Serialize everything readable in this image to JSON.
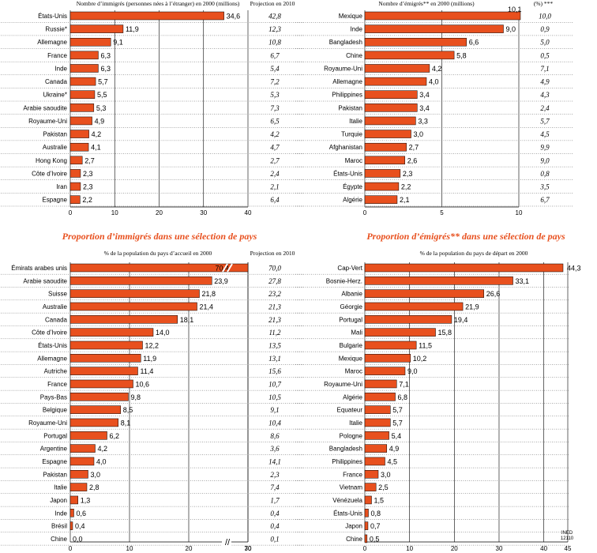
{
  "colors": {
    "bar": "#e8501e",
    "title": "#e8501e",
    "grid": "#000000",
    "dots": "#555555"
  },
  "panel_titles": {
    "top_left": "",
    "top_right": "",
    "bottom_left": "Proportion d’immigrés dans une sélection de pays",
    "bottom_right": "Proportion d’émigrés** dans une sélection de pays"
  },
  "column_headers": {
    "top_left": "Nombre d’immigrés (personnes nées à l’étranger) en 2000 (millions)",
    "top_left_proj": "Projection en 2010",
    "top_right": "Nombre d’émigrés** en 2000 (millions)",
    "top_right_proj": "(%) ***",
    "bottom_left": "% de la population du pays d’accueil en 2000",
    "bottom_left_proj": "Projection en 2010",
    "bottom_right": "% de la population du pays de départ en 2000"
  },
  "source_mark": "INED 12110",
  "axis_break_mark": "//",
  "chart_data": [
    {
      "id": "immigres_nombre",
      "type": "bar",
      "orientation": "horizontal",
      "categories": [
        "États-Unis",
        "Russie*",
        "Allemagne",
        "France",
        "Inde",
        "Canada",
        "Ukraine*",
        "Arabie saoudite",
        "Royaume-Uni",
        "Pakistan",
        "Australie",
        "Hong Kong",
        "Côte d’Ivoire",
        "Iran",
        "Espagne"
      ],
      "values": [
        34.6,
        11.9,
        9.1,
        6.3,
        6.3,
        5.7,
        5.5,
        5.3,
        4.9,
        4.2,
        4.1,
        2.7,
        2.3,
        2.3,
        2.2
      ],
      "value_labels": [
        "34,6",
        "11,9",
        "9,1",
        "6,3",
        "6,3",
        "5,7",
        "5,5",
        "5,3",
        "4,9",
        "4,2",
        "4,1",
        "2,7",
        "2,3",
        "2,3",
        "2,2"
      ],
      "projection_labels": [
        "42,8",
        "12,3",
        "10,8",
        "6,7",
        "5,4",
        "7,2",
        "5,3",
        "7,3",
        "6,5",
        "4,2",
        "4,7",
        "2,7",
        "2,4",
        "2,1",
        "6,4"
      ],
      "xlim": [
        0,
        40
      ],
      "xticks": [
        "0",
        "10",
        "20",
        "30",
        "40"
      ],
      "grid": true
    },
    {
      "id": "emigres_nombre",
      "type": "bar",
      "orientation": "horizontal",
      "categories": [
        "Mexique",
        "Inde",
        "Bangladesh",
        "Chine",
        "Royaume-Uni",
        "Allemagne",
        "Philippines",
        "Pakistan",
        "Italie",
        "Turquie",
        "Afghanistan",
        "Maroc",
        "États-Unis",
        "Égypte",
        "Algérie"
      ],
      "values": [
        10.1,
        9.0,
        6.6,
        5.8,
        4.2,
        4.0,
        3.4,
        3.4,
        3.3,
        3.0,
        2.7,
        2.6,
        2.3,
        2.2,
        2.1
      ],
      "value_labels": [
        "10,1",
        "9,0",
        "6,6",
        "5,8",
        "4,2",
        "4,0",
        "3,4",
        "3,4",
        "3,3",
        "3,0",
        "2,7",
        "2,6",
        "2,3",
        "2,2",
        "2,1"
      ],
      "projection_labels": [
        "10,0",
        "0,9",
        "5,0",
        "0,5",
        "7,1",
        "4,9",
        "4,3",
        "2,4",
        "5,7",
        "4,5",
        "9,9",
        "9,0",
        "0,8",
        "3,5",
        "6,7"
      ],
      "xlim": [
        0,
        10
      ],
      "xticks": [
        "0",
        "5",
        "10"
      ],
      "grid": true
    },
    {
      "id": "immigres_proportion",
      "type": "bar",
      "orientation": "horizontal",
      "title": "Proportion d’immigrés dans une sélection de pays",
      "categories": [
        "Émirats arabes unis",
        "Arabie saoudite",
        "Suisse",
        "Australie",
        "Canada",
        "Côte d’Ivoire",
        "États-Unis",
        "Allemagne",
        "Autriche",
        "France",
        "Pays-Bas",
        "Belgique",
        "Royaume-Uni",
        "Portugal",
        "Argentine",
        "Espagne",
        "Pakistan",
        "Italie",
        "Japon",
        "Inde",
        "Brésil",
        "Chine"
      ],
      "values": [
        70.4,
        23.9,
        21.8,
        21.4,
        18.1,
        14.0,
        12.2,
        11.9,
        11.4,
        10.6,
        9.8,
        8.5,
        8.1,
        6.2,
        4.2,
        4.0,
        3.0,
        2.8,
        1.3,
        0.6,
        0.4,
        0.0
      ],
      "value_labels": [
        "70,4",
        "23,9",
        "21,8",
        "21,4",
        "18,1",
        "14,0",
        "12,2",
        "11,9",
        "11,4",
        "10,6",
        "9,8",
        "8,5",
        "8,1",
        "6,2",
        "4,2",
        "4,0",
        "3,0",
        "2,8",
        "1,3",
        "0,6",
        "0,4",
        "0,0"
      ],
      "projection_labels": [
        "70,0",
        "27,8",
        "23,2",
        "21,3",
        "21,3",
        "11,2",
        "13,5",
        "13,1",
        "15,6",
        "10,7",
        "10,5",
        "9,1",
        "10,4",
        "8,6",
        "3,6",
        "14,1",
        "2,3",
        "7,4",
        "1,7",
        "0,4",
        "0,4",
        "0,1"
      ],
      "xlim": [
        0,
        70
      ],
      "axis_break": [
        30,
        70
      ],
      "xticks": [
        "0",
        "10",
        "20",
        "30",
        "70"
      ],
      "grid": true
    },
    {
      "id": "emigres_proportion",
      "type": "bar",
      "orientation": "horizontal",
      "title": "Proportion d’émigrés** dans une sélection de pays",
      "categories": [
        "Cap-Vert",
        "Bosnie-Herz.",
        "Albanie",
        "Géorgie",
        "Portugal",
        "Mali",
        "Bulgarie",
        "Mexique",
        "Maroc",
        "Royaume-Uni",
        "Algérie",
        "Equateur",
        "Italie",
        "Pologne",
        "Bangladesh",
        "Philippines",
        "France",
        "Vietnam",
        "Vénézuela",
        "États-Unis",
        "Japon",
        "Chine"
      ],
      "values": [
        44.3,
        33.1,
        26.6,
        21.9,
        19.4,
        15.8,
        11.5,
        10.2,
        9.0,
        7.1,
        6.8,
        5.7,
        5.7,
        5.4,
        4.9,
        4.5,
        3.0,
        2.5,
        1.5,
        0.8,
        0.7,
        0.5
      ],
      "value_labels": [
        "44,3",
        "33,1",
        "26,6",
        "21,9",
        "19,4",
        "15,8",
        "11,5",
        "10,2",
        "9,0",
        "7,1",
        "6,8",
        "5,7",
        "5,7",
        "5,4",
        "4,9",
        "4,5",
        "3,0",
        "2,5",
        "1,5",
        "0,8",
        "0,7",
        "0,5"
      ],
      "xlim": [
        0,
        45
      ],
      "xticks": [
        "0",
        "10",
        "20",
        "30",
        "40",
        "45"
      ],
      "grid": true
    }
  ]
}
